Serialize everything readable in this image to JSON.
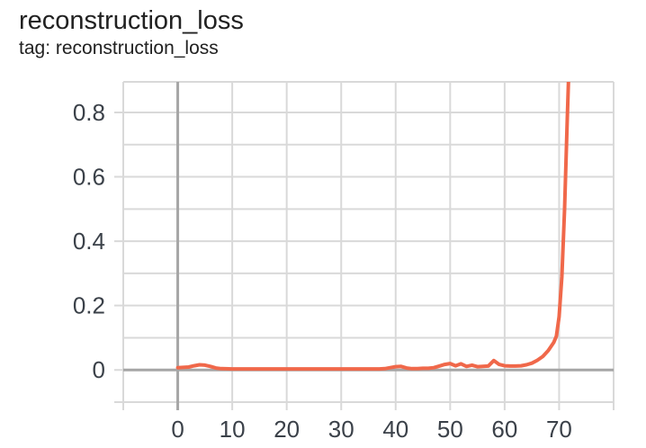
{
  "header": {
    "title": "reconstruction_loss",
    "subtitle": "tag: reconstruction_loss"
  },
  "chart_data": {
    "type": "line",
    "title": "reconstruction_loss",
    "tag": "reconstruction_loss",
    "xlabel": "",
    "ylabel": "",
    "xlim": [
      -10,
      80
    ],
    "ylim": [
      -0.1,
      0.895
    ],
    "x_grid_step": 10,
    "y_grid_step": 0.1,
    "grid": true,
    "legend_position": "none",
    "x_ticks": [
      [
        0,
        "0"
      ],
      [
        10,
        "10"
      ],
      [
        20,
        "20"
      ],
      [
        30,
        "30"
      ],
      [
        40,
        "40"
      ],
      [
        50,
        "50"
      ],
      [
        60,
        "60"
      ],
      [
        70,
        "70"
      ]
    ],
    "y_ticks": [
      [
        0,
        "0"
      ],
      [
        0.2,
        "0.2"
      ],
      [
        0.4,
        "0.4"
      ],
      [
        0.6,
        "0.6"
      ],
      [
        0.8,
        "0.8"
      ]
    ],
    "series": [
      {
        "name": "reconstruction_loss",
        "color": "#f0684a",
        "points": [
          [
            0,
            0.007
          ],
          [
            1,
            0.008
          ],
          [
            2,
            0.009
          ],
          [
            3,
            0.013
          ],
          [
            4,
            0.016
          ],
          [
            5,
            0.015
          ],
          [
            6,
            0.011
          ],
          [
            7,
            0.006
          ],
          [
            8,
            0.004
          ],
          [
            10,
            0.003
          ],
          [
            14,
            0.003
          ],
          [
            18,
            0.003
          ],
          [
            22,
            0.003
          ],
          [
            26,
            0.003
          ],
          [
            30,
            0.003
          ],
          [
            34,
            0.003
          ],
          [
            37,
            0.003
          ],
          [
            38,
            0.004
          ],
          [
            39,
            0.007
          ],
          [
            40,
            0.01
          ],
          [
            41,
            0.011
          ],
          [
            42,
            0.006
          ],
          [
            43,
            0.004
          ],
          [
            44,
            0.004
          ],
          [
            45,
            0.005
          ],
          [
            46,
            0.005
          ],
          [
            47,
            0.007
          ],
          [
            48,
            0.012
          ],
          [
            49,
            0.017
          ],
          [
            50,
            0.02
          ],
          [
            51,
            0.013
          ],
          [
            52,
            0.019
          ],
          [
            53,
            0.011
          ],
          [
            54,
            0.015
          ],
          [
            55,
            0.01
          ],
          [
            56,
            0.011
          ],
          [
            57,
            0.012
          ],
          [
            58,
            0.029
          ],
          [
            59,
            0.017
          ],
          [
            60,
            0.013
          ],
          [
            61,
            0.012
          ],
          [
            62,
            0.012
          ],
          [
            63,
            0.013
          ],
          [
            64,
            0.016
          ],
          [
            65,
            0.021
          ],
          [
            66,
            0.03
          ],
          [
            67,
            0.042
          ],
          [
            68,
            0.06
          ],
          [
            69,
            0.085
          ],
          [
            69.5,
            0.105
          ],
          [
            70,
            0.165
          ],
          [
            70.5,
            0.29
          ],
          [
            71,
            0.5
          ],
          [
            71.5,
            0.78
          ],
          [
            71.9,
            1.0
          ]
        ]
      }
    ],
    "colors": {
      "line": "#f0684a",
      "grid": "#d9d9d9",
      "axis": "#a6a6a6",
      "tick_label": "#3b4149",
      "title": "#212121",
      "background": "#ffffff"
    }
  }
}
